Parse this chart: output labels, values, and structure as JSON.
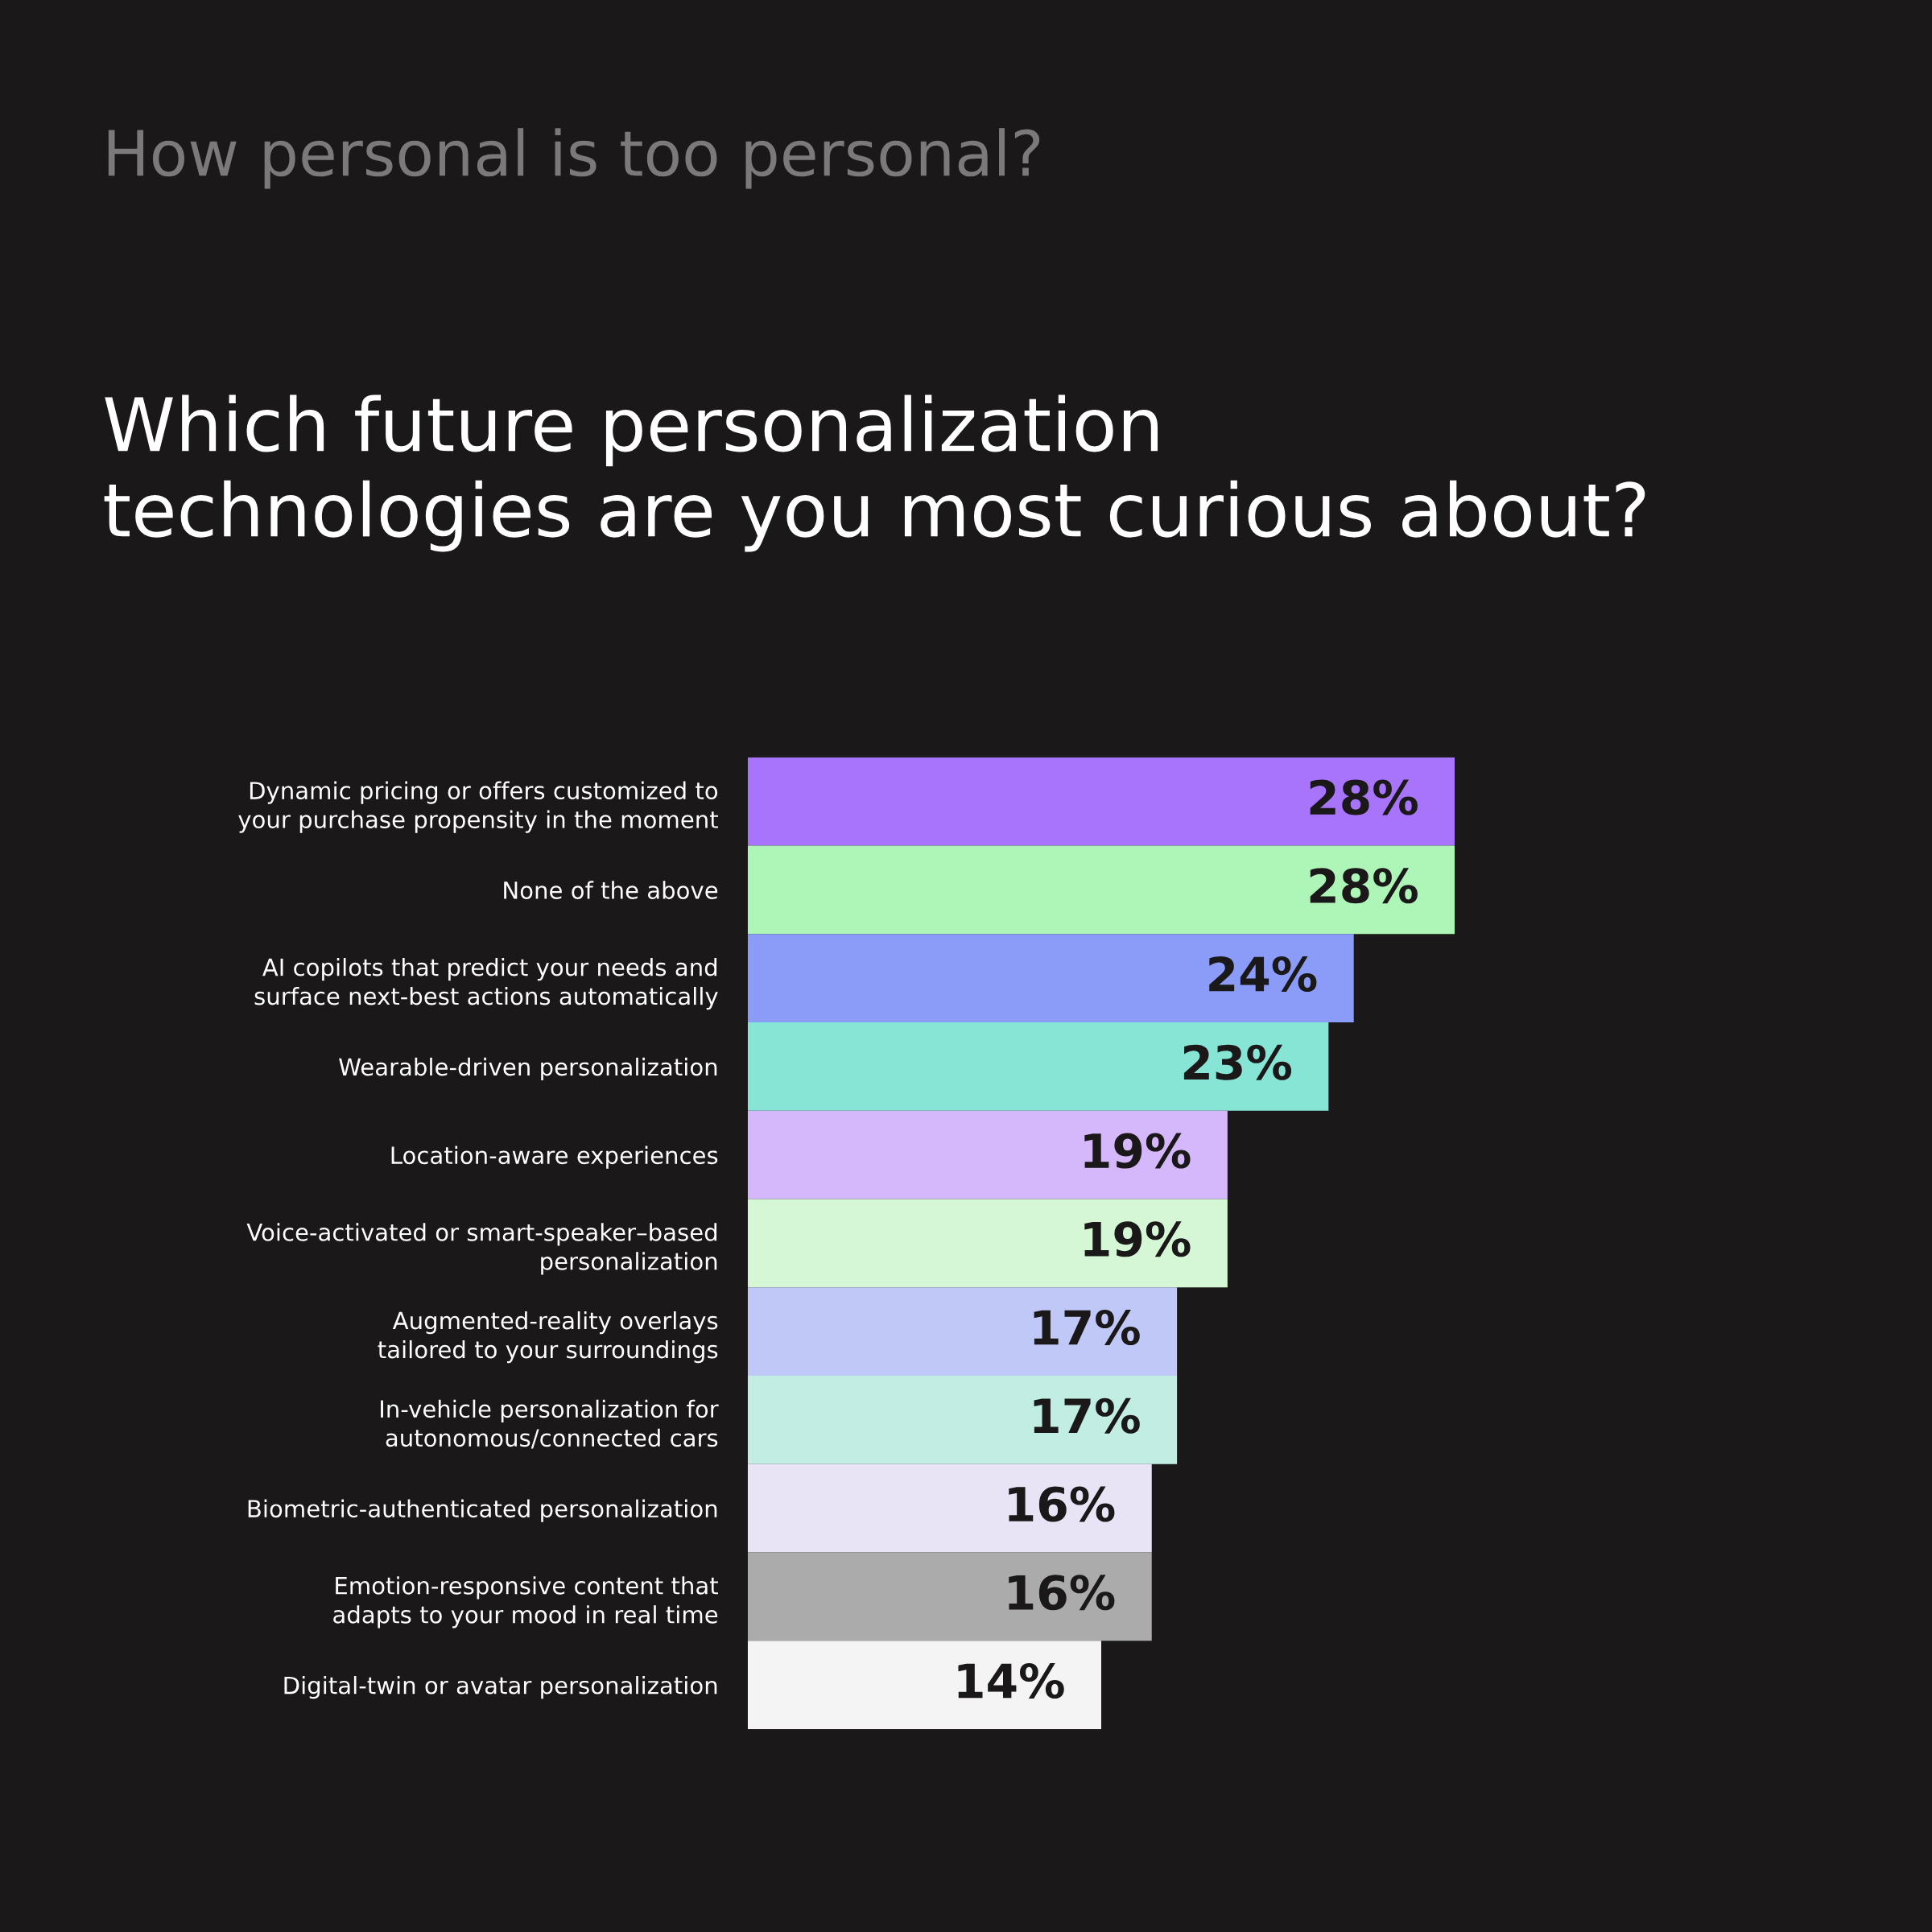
{
  "chart_data": {
    "type": "bar",
    "orientation": "horizontal",
    "subtitle": "How personal is too personal?",
    "title": "Which future personalization\ntechnologies are you most curious about?",
    "categories": [
      "Dynamic pricing or offers customized to\nyour purchase propensity in the moment",
      "None of the above",
      "AI copilots that predict your needs and\nsurface next-best actions automatically",
      "Wearable-driven personalization",
      "Location-aware experiences",
      "Voice-activated or smart-speaker–based\npersonalization",
      "Augmented-reality overlays\ntailored to your surroundings",
      "In-vehicle personalization for\nautonomous/connected cars",
      "Biometric-authenticated personalization",
      "Emotion-responsive content that\nadapts to your mood in real time",
      "Digital-twin or avatar personalization"
    ],
    "values": [
      28,
      28,
      24,
      23,
      19,
      19,
      17,
      17,
      16,
      16,
      14
    ],
    "colors": [
      "#a974fc",
      "#aef5b8",
      "#8a9cf7",
      "#86e5d4",
      "#d5b8fb",
      "#d6f7d6",
      "#c0c8f8",
      "#c1ede2",
      "#e9e3f6",
      "#ababab",
      "#f4f4f4"
    ],
    "value_labels": [
      "28%",
      "28%",
      "24%",
      "23%",
      "19%",
      "19%",
      "17%",
      "17%",
      "16%",
      "16%",
      "14%"
    ],
    "grid": false,
    "legend": false,
    "tick_labels": "y"
  }
}
